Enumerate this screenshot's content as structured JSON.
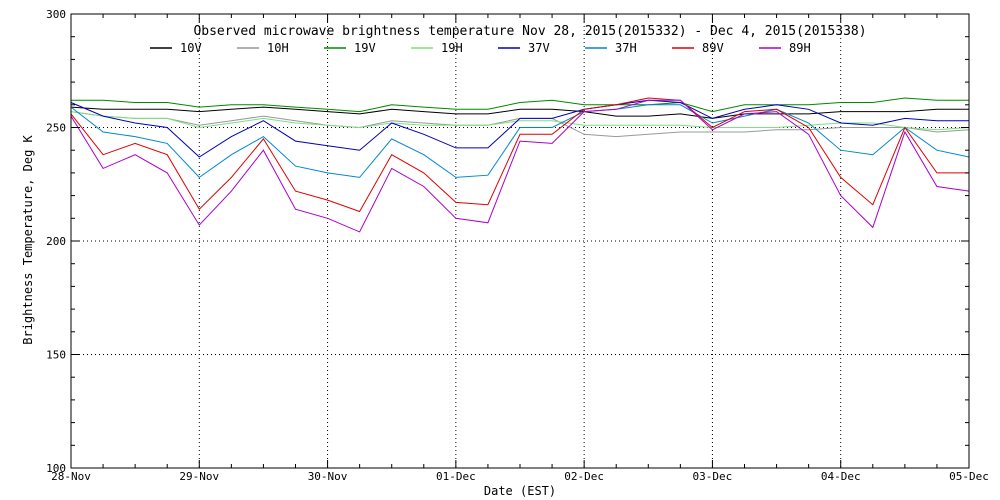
{
  "chart_data": {
    "type": "line",
    "title": "Observed microwave brightness temperature Nov 28, 2015(2015332) - Dec  4, 2015(2015338)",
    "xlabel": "Date (EST)",
    "ylabel": "Brightness Temperature, Deg K",
    "xlim": [
      0,
      7
    ],
    "ylim": [
      100,
      300
    ],
    "x_tick_labels": [
      "28-Nov",
      "29-Nov",
      "30-Nov",
      "01-Dec",
      "02-Dec",
      "03-Dec",
      "04-Dec",
      "05-Dec"
    ],
    "y_ticks": [
      100,
      150,
      200,
      250,
      300
    ],
    "grid": true,
    "legend_position": "top",
    "x": [
      0,
      0.25,
      0.5,
      0.75,
      1,
      1.25,
      1.5,
      1.75,
      2,
      2.25,
      2.5,
      2.75,
      3,
      3.25,
      3.5,
      3.75,
      4,
      4.25,
      4.5,
      4.75,
      5,
      5.25,
      5.5,
      5.75,
      6,
      6.25,
      6.5,
      6.75,
      7
    ],
    "series": [
      {
        "name": "10V",
        "color": "#000000",
        "values": [
          259,
          258,
          258,
          258,
          257,
          258,
          259,
          258,
          257,
          256,
          258,
          257,
          256,
          256,
          258,
          258,
          257,
          255,
          255,
          256,
          254,
          256,
          256,
          256,
          257,
          257,
          257,
          258,
          258
        ]
      },
      {
        "name": "10H",
        "color": "#999999",
        "values": [
          257,
          255,
          254,
          254,
          251,
          253,
          255,
          253,
          251,
          250,
          253,
          252,
          251,
          251,
          254,
          254,
          247,
          246,
          247,
          248,
          248,
          248,
          249,
          249,
          250,
          250,
          250,
          248,
          249
        ]
      },
      {
        "name": "19V",
        "color": "#008800",
        "values": [
          262,
          262,
          261,
          261,
          259,
          260,
          260,
          259,
          258,
          257,
          260,
          259,
          258,
          258,
          261,
          262,
          260,
          260,
          260,
          261,
          257,
          260,
          260,
          260,
          261,
          261,
          263,
          262,
          262
        ]
      },
      {
        "name": "19H",
        "color": "#7ee07e",
        "values": [
          257,
          255,
          254,
          254,
          250,
          252,
          254,
          252,
          251,
          250,
          252,
          251,
          251,
          251,
          253,
          253,
          251,
          251,
          251,
          251,
          250,
          250,
          250,
          251,
          252,
          252,
          250,
          249,
          250
        ]
      },
      {
        "name": "37V",
        "color": "#0000bb",
        "values": [
          261,
          255,
          252,
          250,
          237,
          246,
          253,
          244,
          242,
          240,
          252,
          247,
          241,
          241,
          254,
          254,
          258,
          260,
          262,
          261,
          254,
          258,
          260,
          258,
          252,
          251,
          254,
          253,
          253
        ]
      },
      {
        "name": "37H",
        "color": "#0088cc",
        "values": [
          259,
          248,
          246,
          243,
          228,
          238,
          246,
          233,
          230,
          228,
          245,
          238,
          228,
          229,
          250,
          250,
          257,
          258,
          260,
          260,
          252,
          255,
          258,
          252,
          240,
          238,
          250,
          240,
          237
        ]
      },
      {
        "name": "89V",
        "color": "#dd0000",
        "values": [
          256,
          238,
          243,
          238,
          214,
          228,
          245,
          222,
          218,
          213,
          238,
          230,
          217,
          216,
          247,
          247,
          258,
          260,
          263,
          262,
          250,
          257,
          258,
          250,
          228,
          216,
          250,
          230,
          230
        ]
      },
      {
        "name": "89H",
        "color": "#aa00cc",
        "values": [
          255,
          232,
          238,
          230,
          207,
          222,
          240,
          214,
          210,
          204,
          232,
          224,
          210,
          208,
          244,
          243,
          257,
          258,
          262,
          262,
          249,
          256,
          257,
          247,
          220,
          206,
          248,
          224,
          222
        ]
      }
    ]
  }
}
